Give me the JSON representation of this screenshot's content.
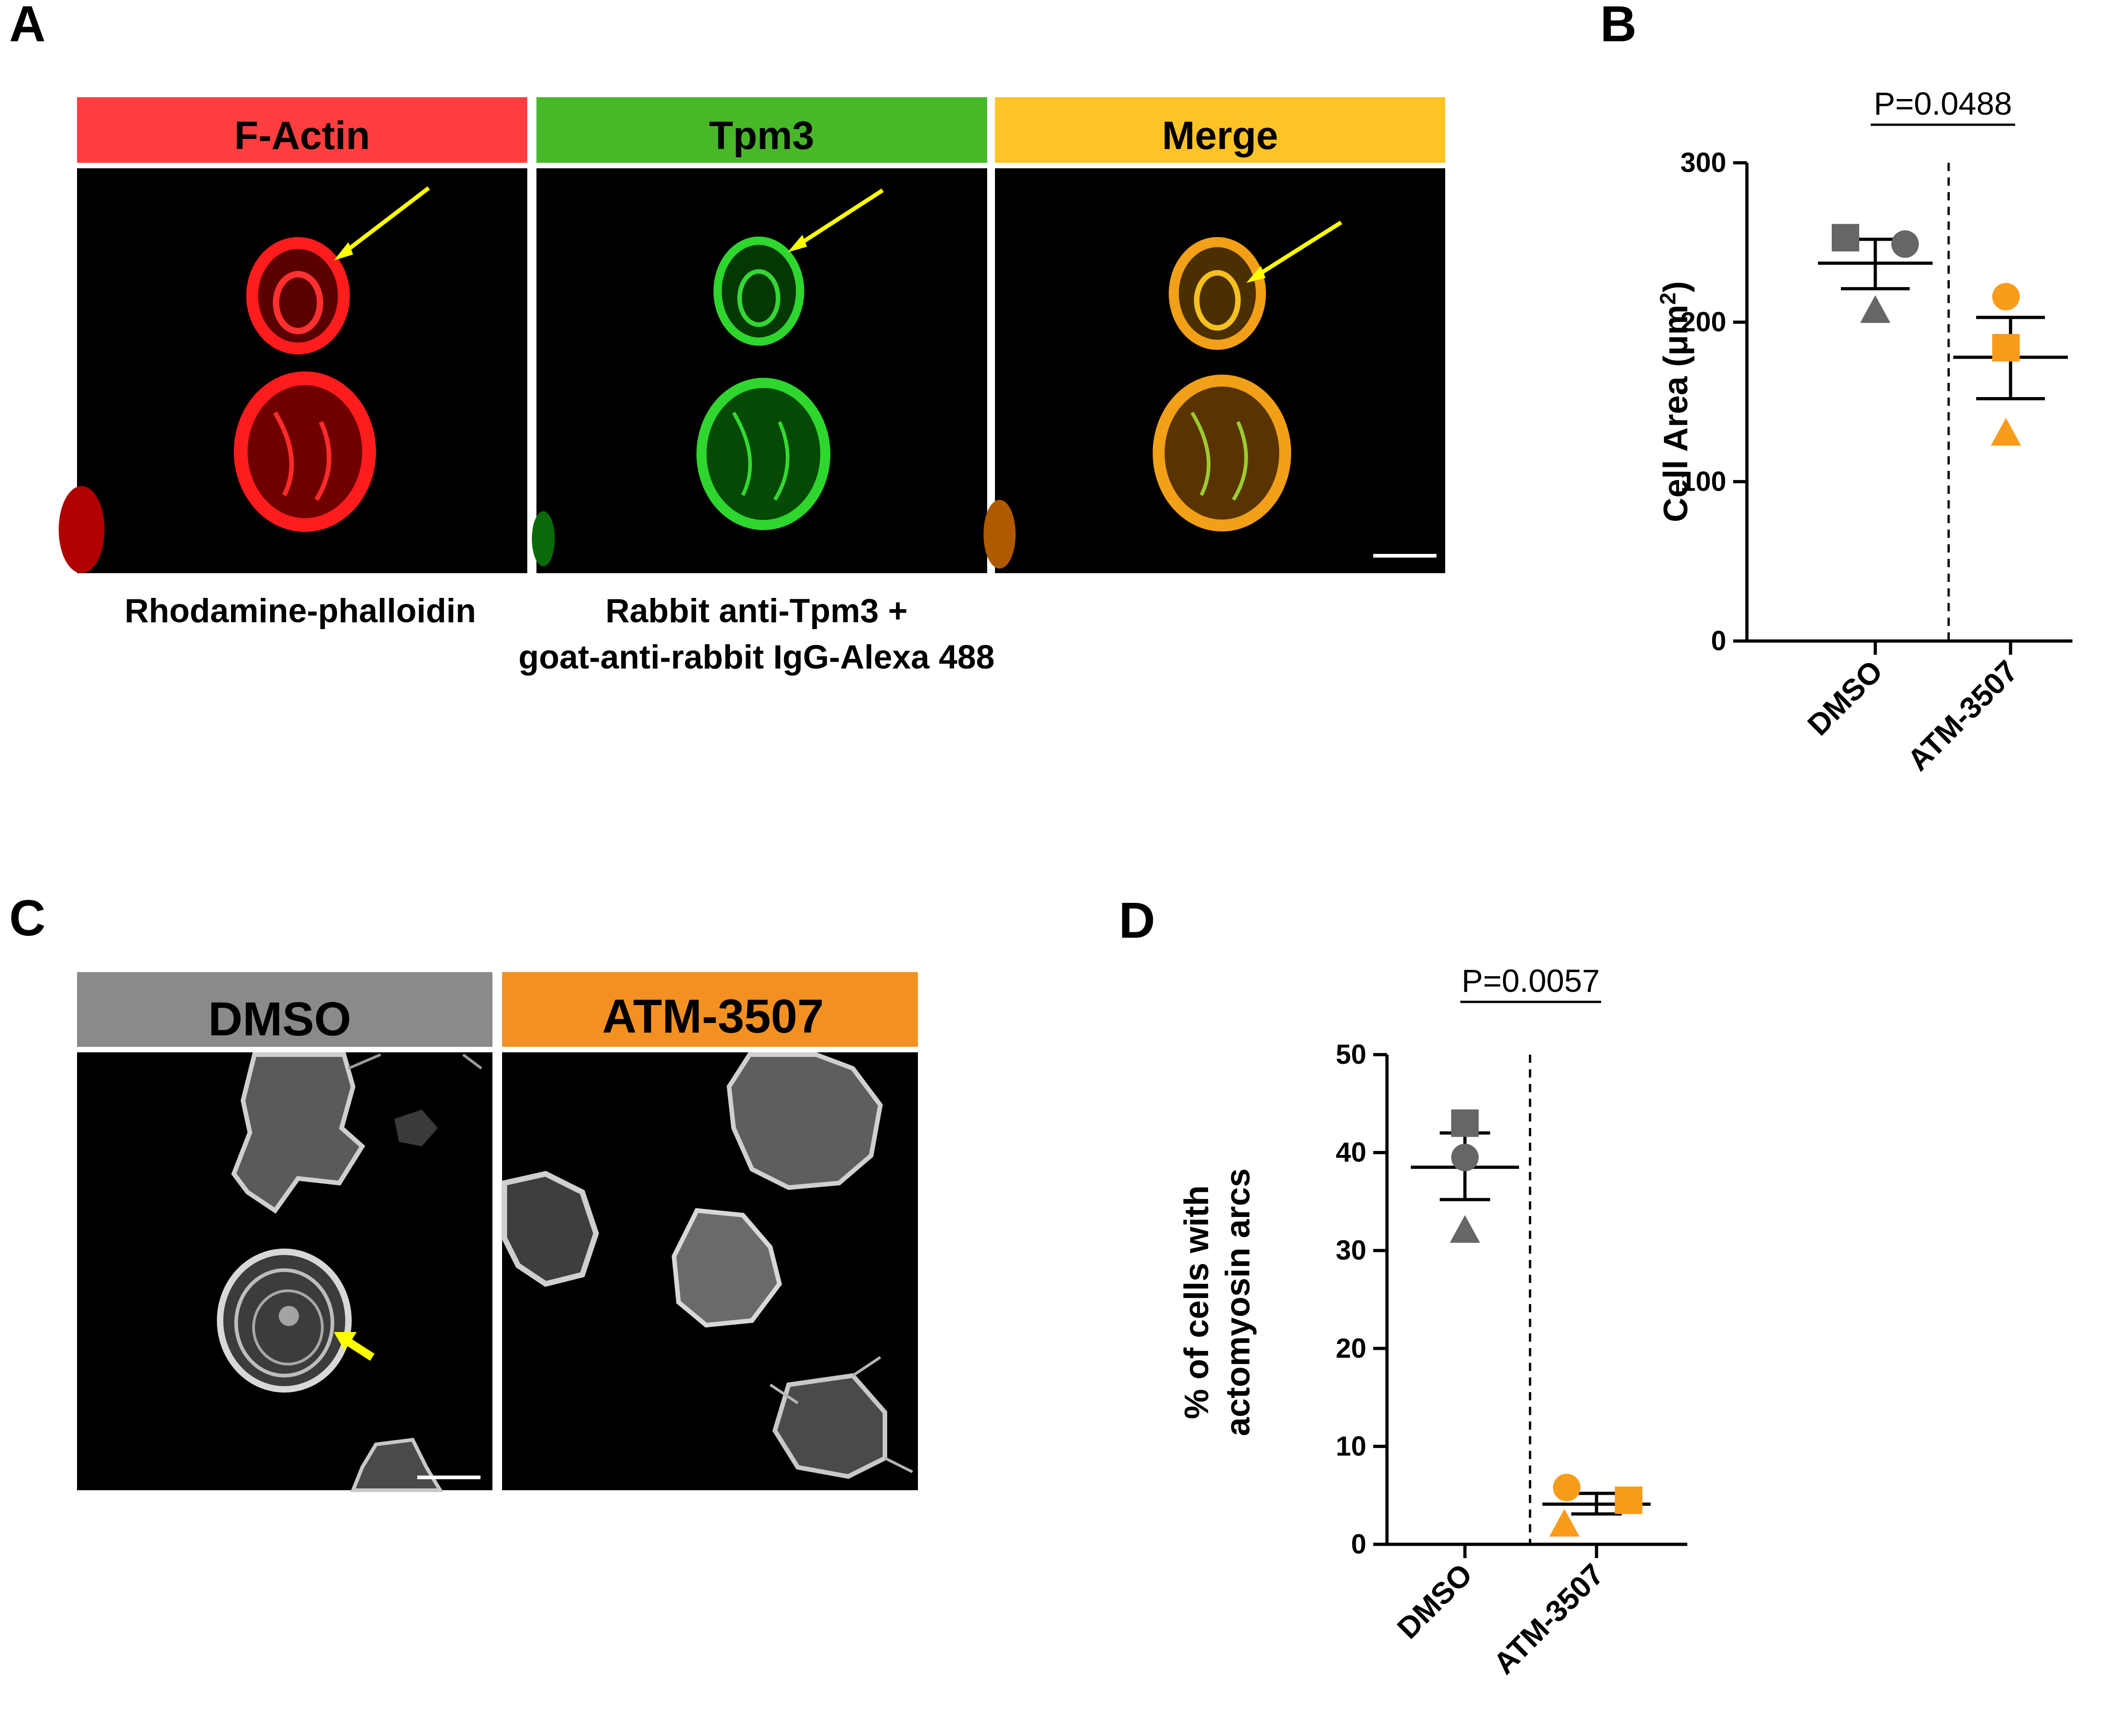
{
  "panels": {
    "A": {
      "letter": "A",
      "headers": [
        {
          "label": "F-Actin",
          "color": "#ff3f3f"
        },
        {
          "label": "Tpm3",
          "color": "#48b728"
        },
        {
          "label": "Merge",
          "color": "#fec326"
        }
      ],
      "captions": {
        "left": "Rhodamine-phalloidin",
        "right_line1": "Rabbit anti-Tpm3 +",
        "right_line2": "goat-anti-rabbit IgG-Alexa 488"
      },
      "channel_colors": {
        "actin": "#ff1c1c",
        "tpm3": "#2ed62e",
        "merge": "#f2a018",
        "arrow": "#ffff00"
      }
    },
    "B": {
      "letter": "B"
    },
    "C": {
      "letter": "C",
      "headers": [
        {
          "label": "DMSO",
          "color": "#8a8a8a"
        },
        {
          "label": "ATM-3507",
          "color": "#f29022"
        }
      ],
      "arrow_color": "#ffff00"
    },
    "D": {
      "letter": "D"
    }
  },
  "chart_data": [
    {
      "panel": "B",
      "type": "scatter",
      "ylabel": "Cell Area (μm²)",
      "ylabel_main": "Cell Area (",
      "ylabel_unit": "μm",
      "ylabel_sup": "2",
      "ylabel_end": ")",
      "ylim": [
        0,
        300
      ],
      "yticks": [
        "0",
        "100",
        "200",
        "300"
      ],
      "categories": [
        "DMSO",
        "ATM-3507"
      ],
      "pvalue": "P=0.0488",
      "colors": {
        "DMSO": "#666666",
        "ATM-3507": "#f99b1b"
      },
      "points": [
        {
          "group": "DMSO",
          "shape": "square",
          "value": 253
        },
        {
          "group": "DMSO",
          "shape": "circle",
          "value": 249
        },
        {
          "group": "DMSO",
          "shape": "triangle",
          "value": 207
        },
        {
          "group": "ATM-3507",
          "shape": "circle",
          "value": 216
        },
        {
          "group": "ATM-3507",
          "shape": "square",
          "value": 184
        },
        {
          "group": "ATM-3507",
          "shape": "triangle",
          "value": 130
        }
      ],
      "means": [
        {
          "group": "DMSO",
          "mean": 237,
          "sem_low": 221,
          "sem_high": 252
        },
        {
          "group": "ATM-3507",
          "mean": 178,
          "sem_low": 152,
          "sem_high": 203
        }
      ]
    },
    {
      "panel": "D",
      "type": "scatter",
      "ylabel": "% of cells with actomyosin arcs",
      "ylabel_line1": "% of cells with",
      "ylabel_line2": "actomyosin arcs",
      "ylim": [
        0,
        50
      ],
      "yticks": [
        "0",
        "10",
        "20",
        "30",
        "40",
        "50"
      ],
      "categories": [
        "DMSO",
        "ATM-3507"
      ],
      "pvalue": "P=0.0057",
      "colors": {
        "DMSO": "#666666",
        "ATM-3507": "#f99b1b"
      },
      "points": [
        {
          "group": "DMSO",
          "shape": "square",
          "value": 43
        },
        {
          "group": "DMSO",
          "shape": "circle",
          "value": 39.5
        },
        {
          "group": "DMSO",
          "shape": "triangle",
          "value": 32
        },
        {
          "group": "ATM-3507",
          "shape": "circle",
          "value": 5.8
        },
        {
          "group": "ATM-3507",
          "shape": "square",
          "value": 4.5
        },
        {
          "group": "ATM-3507",
          "shape": "triangle",
          "value": 2
        }
      ],
      "means": [
        {
          "group": "DMSO",
          "mean": 38.5,
          "sem_low": 35.2,
          "sem_high": 42
        },
        {
          "group": "ATM-3507",
          "mean": 4.1,
          "sem_low": 3.1,
          "sem_high": 5.2
        }
      ]
    }
  ]
}
